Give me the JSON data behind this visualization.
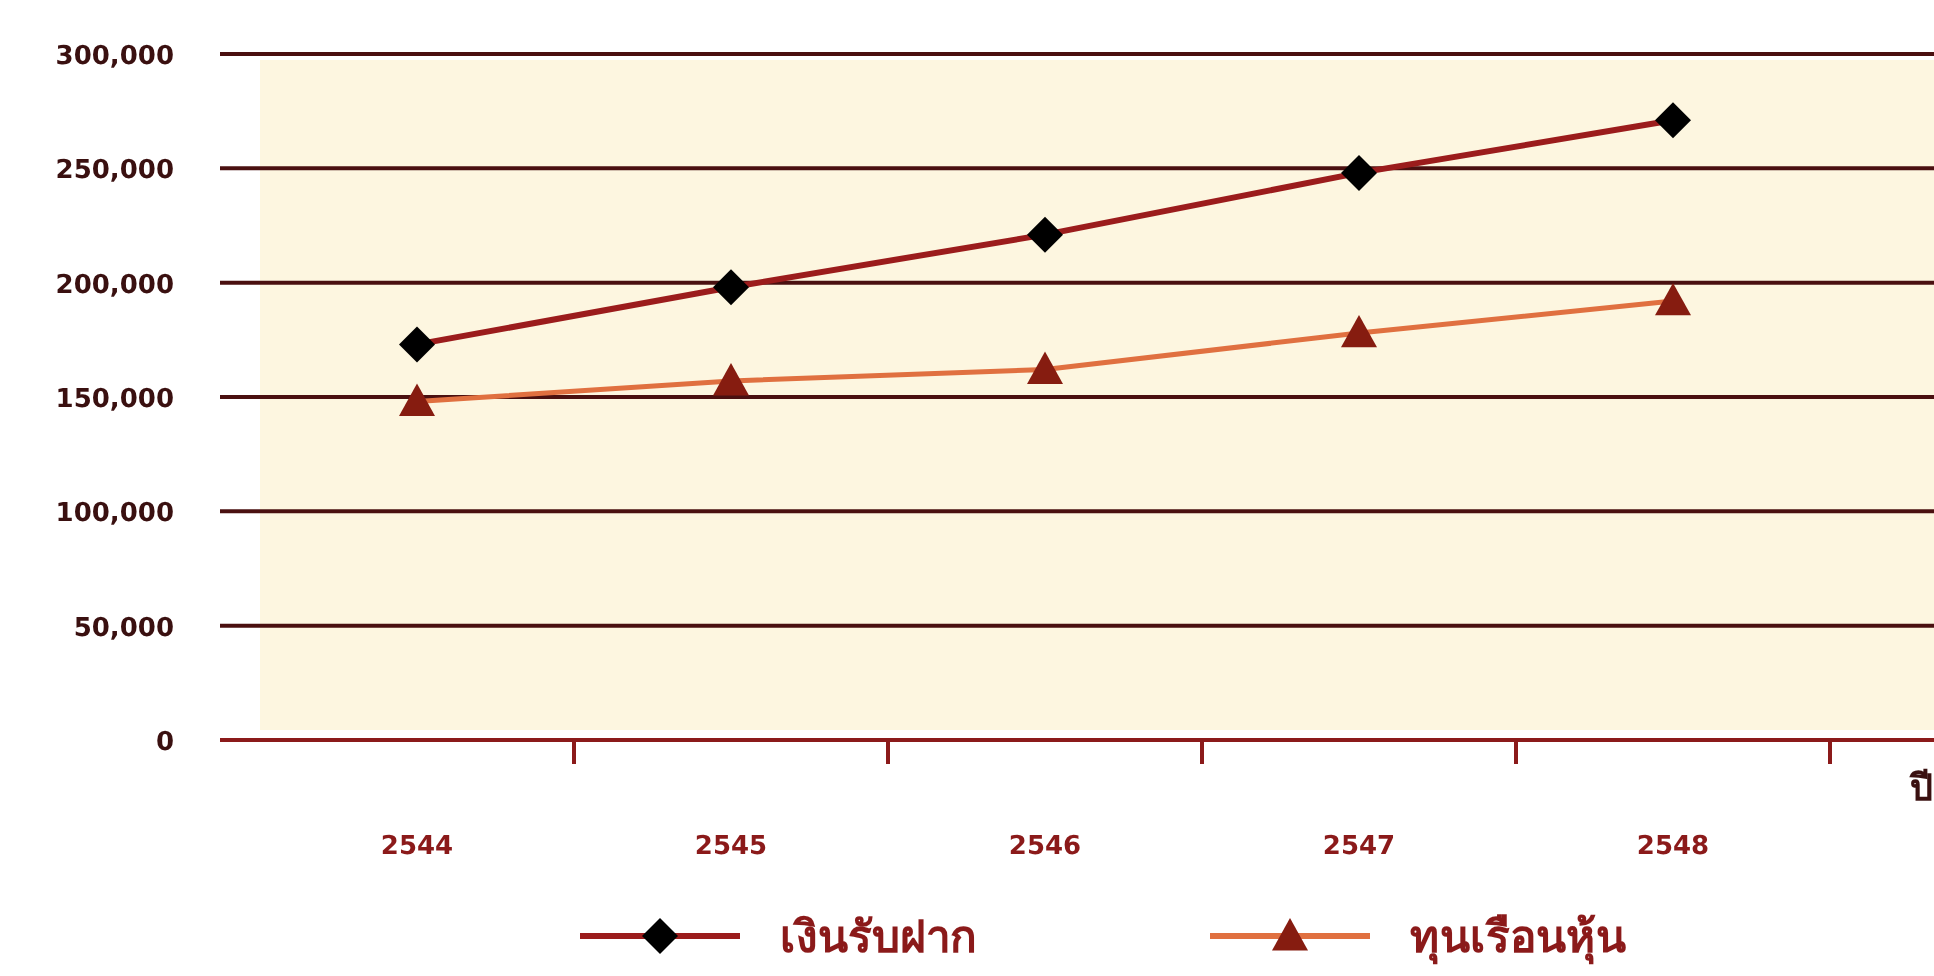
{
  "chart_data": {
    "type": "line",
    "xlabel": "ปี",
    "categories": [
      "2544",
      "2545",
      "2546",
      "2547",
      "2548"
    ],
    "series": [
      {
        "name": "เงินรับฝาก",
        "color": "#9b1c1c",
        "marker": "diamond",
        "values": [
          173000,
          198000,
          221000,
          248000,
          271000
        ]
      },
      {
        "name": "ทุนเรือนหุ้น",
        "color": "#e07040",
        "marker": "triangle",
        "values": [
          148000,
          157000,
          162000,
          178000,
          192000
        ]
      }
    ],
    "ylim": [
      0,
      300000
    ],
    "yticks": [
      {
        "value": 0,
        "label": "0"
      },
      {
        "value": 50000,
        "label": "50,000"
      },
      {
        "value": 100000,
        "label": "100,000"
      },
      {
        "value": 150000,
        "label": "150,000"
      },
      {
        "value": 200000,
        "label": "200,000"
      },
      {
        "value": 250000,
        "label": "250,000"
      },
      {
        "value": 300000,
        "label": "300,000"
      }
    ],
    "grid": "y",
    "legend": "bottom"
  }
}
